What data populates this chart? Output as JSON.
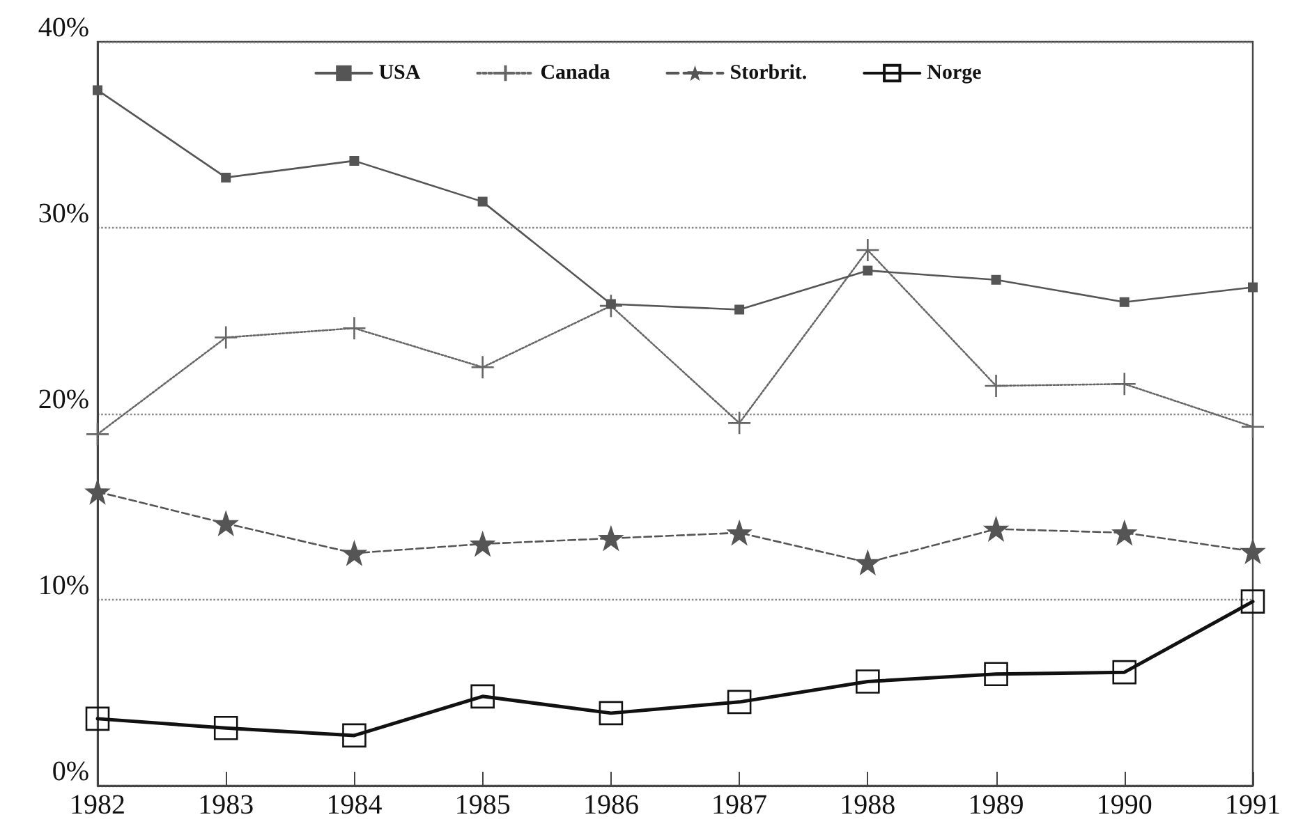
{
  "chart_data": {
    "type": "line",
    "categories": [
      "1982",
      "1983",
      "1984",
      "1985",
      "1986",
      "1987",
      "1988",
      "1989",
      "1990",
      "1991"
    ],
    "series": [
      {
        "name": "USA",
        "color": "#555555",
        "marker": "square",
        "line_style": "solid",
        "values": [
          37.4,
          32.7,
          33.6,
          31.4,
          25.9,
          25.6,
          27.7,
          27.2,
          26.0,
          26.8
        ]
      },
      {
        "name": "Canada",
        "color": "#666666",
        "marker": "cross",
        "line_style": "dotted",
        "values": [
          18.9,
          24.1,
          24.6,
          22.5,
          25.8,
          19.5,
          28.8,
          21.5,
          21.6,
          19.3
        ]
      },
      {
        "name": "Storbrit.",
        "color": "#555555",
        "marker": "star",
        "line_style": "dashed",
        "values": [
          15.8,
          14.1,
          12.5,
          13.0,
          13.3,
          13.6,
          12.0,
          13.8,
          13.6,
          12.6
        ]
      },
      {
        "name": "Norge",
        "color": "#111111",
        "marker": "square",
        "line_style": "solid",
        "values": [
          3.6,
          3.1,
          2.7,
          4.8,
          3.9,
          4.5,
          5.6,
          6.0,
          6.1,
          9.9
        ]
      }
    ],
    "ylim": [
      0,
      40
    ],
    "yticks": [
      {
        "value": 0,
        "label": "0%"
      },
      {
        "value": 10,
        "label": "10%"
      },
      {
        "value": 20,
        "label": "20%"
      },
      {
        "value": 30,
        "label": "30%"
      },
      {
        "value": 40,
        "label": "40%"
      }
    ],
    "grid": "y",
    "legend": "top"
  }
}
